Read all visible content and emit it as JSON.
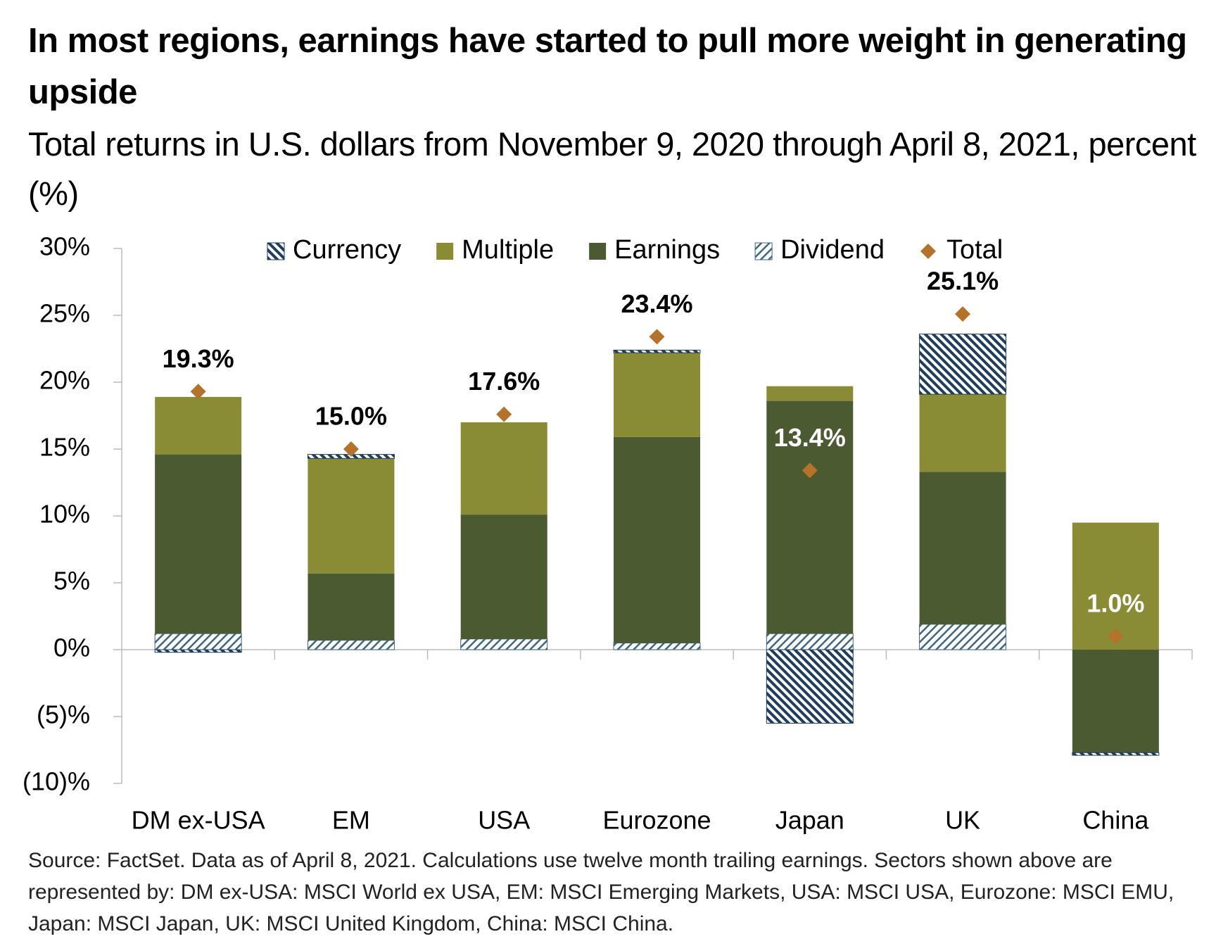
{
  "chart_data": {
    "type": "stacked_bar",
    "title": "In most regions, earnings have started to pull more weight in generating upside",
    "subtitle": "Total returns in U.S. dollars from November 9, 2020 through April 8, 2021, percent (%)",
    "source": "Source: FactSet. Data as of April 8, 2021. Calculations use twelve month trailing earnings. Sectors shown above are represented by: DM ex-USA: MSCI World ex USA, EM: MSCI Emerging Markets, USA: MSCI USA, Eurozone: MSCI EMU, Japan: MSCI Japan, UK: MSCI United Kingdom, China: MSCI China.",
    "categories": [
      "DM ex-USA",
      "EM",
      "USA",
      "Eurozone",
      "Japan",
      "UK",
      "China"
    ],
    "series": [
      {
        "name": "Currency",
        "color": "#1f3d5c",
        "hatch": "back",
        "values": [
          -0.2,
          0.3,
          0,
          0.2,
          -5.5,
          4.5,
          -0.2
        ]
      },
      {
        "name": "Multiple",
        "color": "#8a8c35",
        "values": [
          4.3,
          8.6,
          6.9,
          6.3,
          1.1,
          5.8,
          9.5
        ]
      },
      {
        "name": "Earnings",
        "color": "#4b5a31",
        "values": [
          13.4,
          5.0,
          9.3,
          15.4,
          17.4,
          11.4,
          -7.7
        ]
      },
      {
        "name": "Dividend",
        "color": "#3f6680",
        "hatch": "forward",
        "values": [
          1.2,
          0.7,
          0.8,
          0.5,
          1.2,
          1.9,
          0
        ]
      }
    ],
    "stack_order": [
      3,
      2,
      1,
      0
    ],
    "total": {
      "name": "Total",
      "color": "#b5722b",
      "values": [
        19.3,
        15.0,
        17.6,
        23.4,
        13.4,
        25.1,
        1.0
      ],
      "value_labels": [
        "19.3%",
        "15.0%",
        "17.6%",
        "23.4%",
        "13.4%",
        "25.1%",
        "1.0%"
      ],
      "label_colors": [
        "#000000",
        "#000000",
        "#000000",
        "#000000",
        "#ffffff",
        "#000000",
        "#ffffff"
      ]
    },
    "ylim": [
      -10,
      30
    ],
    "yticks": [
      {
        "value": -10,
        "label": "(10)%"
      },
      {
        "value": -5,
        "label": "(5)%"
      },
      {
        "value": 0,
        "label": "0%"
      },
      {
        "value": 5,
        "label": "5%"
      },
      {
        "value": 10,
        "label": "10%"
      },
      {
        "value": 15,
        "label": "15%"
      },
      {
        "value": 20,
        "label": "20%"
      },
      {
        "value": 25,
        "label": "25%"
      },
      {
        "value": 30,
        "label": "30%"
      }
    ]
  }
}
